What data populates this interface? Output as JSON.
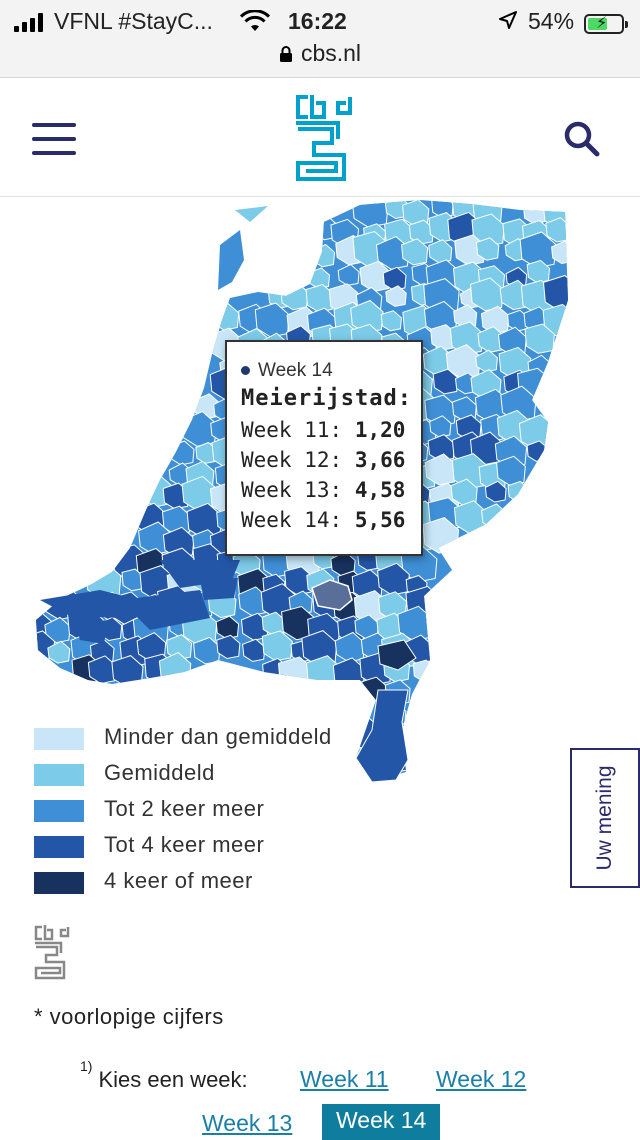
{
  "status_bar": {
    "carrier": "VFNL #StayC...",
    "time": "16:22",
    "battery_percent": "54%",
    "battery_level": 0.54,
    "url": "cbs.nl"
  },
  "header": {
    "menu_icon": "hamburger-menu-icon",
    "logo_icon": "cbs-logo-icon",
    "search_icon": "search-icon"
  },
  "tooltip": {
    "series": "Week 14",
    "title": "Meierijstad:",
    "rows": [
      {
        "label": "Week 11:",
        "value": "1,20"
      },
      {
        "label": "Week 12:",
        "value": "3,66"
      },
      {
        "label": "Week 13:",
        "value": "4,58"
      },
      {
        "label": "Week 14:",
        "value": "5,56"
      }
    ]
  },
  "legend": [
    {
      "label": "Minder dan gemiddeld",
      "color": "#c8e6f8"
    },
    {
      "label": "Gemiddeld",
      "color": "#7ccbe8"
    },
    {
      "label": "Tot 2 keer meer",
      "color": "#3f8fd6"
    },
    {
      "label": "Tot 4 keer meer",
      "color": "#2456a8"
    },
    {
      "label": "4 keer of meer",
      "color": "#17325e"
    }
  ],
  "feedback_button": "Uw mening",
  "note": "* voorlopige cijfers",
  "week_selector": {
    "footnote": "1)",
    "label": "Kies een week:",
    "weeks": [
      "Week 11",
      "Week 12",
      "Week 13",
      "Week 14"
    ],
    "active": "Week 14"
  },
  "colors": {
    "brand": "#2b2b6b",
    "logo": "#00a1cd",
    "link": "#1a7fa8",
    "active_week": "#0e7d9e",
    "highlight_region": "#5a6e9a"
  }
}
